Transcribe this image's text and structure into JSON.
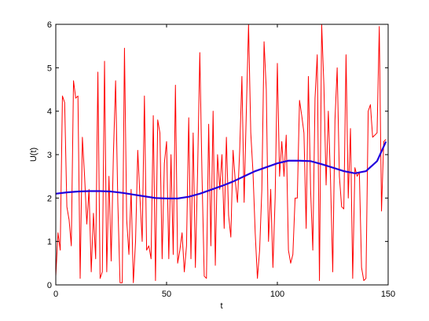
{
  "chart_data": {
    "type": "line",
    "xlabel": "t",
    "ylabel": "U(t)",
    "xlim": [
      0,
      150
    ],
    "ylim": [
      0,
      6
    ],
    "xticks": [
      0,
      50,
      100,
      150
    ],
    "yticks": [
      0,
      1,
      2,
      3,
      4,
      5,
      6
    ],
    "grid": false,
    "series": [
      {
        "color": "#ff0000",
        "width": 1,
        "x": [
          0,
          1,
          2,
          3,
          4,
          5,
          6,
          7,
          8,
          9,
          10,
          11,
          12,
          13,
          14,
          15,
          16,
          17,
          18,
          19,
          20,
          21,
          22,
          23,
          24,
          25,
          26,
          27,
          28,
          29,
          30,
          31,
          32,
          33,
          34,
          35,
          36,
          37,
          38,
          39,
          40,
          41,
          42,
          43,
          44,
          45,
          46,
          47,
          48,
          49,
          50,
          51,
          52,
          53,
          54,
          55,
          56,
          57,
          58,
          59,
          60,
          61,
          62,
          63,
          64,
          65,
          66,
          67,
          68,
          69,
          70,
          71,
          72,
          73,
          74,
          75,
          76,
          77,
          78,
          79,
          80,
          81,
          82,
          83,
          84,
          85,
          86,
          87,
          88,
          89,
          90,
          91,
          92,
          93,
          94,
          95,
          96,
          97,
          98,
          99,
          100,
          101,
          102,
          103,
          104,
          105,
          106,
          107,
          108,
          109,
          110,
          111,
          112,
          113,
          114,
          115,
          116,
          117,
          118,
          119,
          120,
          121,
          122,
          123,
          124,
          125,
          126,
          127,
          128,
          129,
          130,
          131,
          132,
          133,
          134,
          135,
          136,
          137,
          138,
          139,
          140,
          141,
          142,
          143,
          144,
          145,
          146,
          147,
          148,
          149
        ],
        "values": [
          0.2,
          1.2,
          0.8,
          4.35,
          4.2,
          1.8,
          1.5,
          0.9,
          4.7,
          4.3,
          4.35,
          0.15,
          3.4,
          2.5,
          1.4,
          2.2,
          0.3,
          1.65,
          0.6,
          4.9,
          0.15,
          0.3,
          5.15,
          0.3,
          2.5,
          0.55,
          3.0,
          4.7,
          1.9,
          0.05,
          0.05,
          5.45,
          1.5,
          0.7,
          2.2,
          0.05,
          1.0,
          3.1,
          2.0,
          1.0,
          4.35,
          0.8,
          0.9,
          0.6,
          3.9,
          0.1,
          3.8,
          3.5,
          0.6,
          2.8,
          3.3,
          0.6,
          3.0,
          0.7,
          4.6,
          0.5,
          0.8,
          1.2,
          0.3,
          0.9,
          3.85,
          0.6,
          3.5,
          0.4,
          2.6,
          5.35,
          2.5,
          0.2,
          0.15,
          3.7,
          0.9,
          4.0,
          0.45,
          3.0,
          2.2,
          3.0,
          1.3,
          3.4,
          1.6,
          1.1,
          3.1,
          2.4,
          1.9,
          3.1,
          4.8,
          1.9,
          4.0,
          6.0,
          3.5,
          2.6,
          1.2,
          0.15,
          0.8,
          2.2,
          5.6,
          4.5,
          1.0,
          2.2,
          0.4,
          2.0,
          5.1,
          2.5,
          3.3,
          2.5,
          3.45,
          0.8,
          0.5,
          0.7,
          2.0,
          2.0,
          4.25,
          3.9,
          3.5,
          1.3,
          4.8,
          2.2,
          0.8,
          4.3,
          5.3,
          0.1,
          6.0,
          4.6,
          2.3,
          4.0,
          2.4,
          0.3,
          3.8,
          5.0,
          2.5,
          1.8,
          1.75,
          5.3,
          2.0,
          3.6,
          0.15,
          2.7,
          2.5,
          2.6,
          0.4,
          0.1,
          0.15,
          4.0,
          4.15,
          3.4,
          3.45,
          3.5,
          5.95,
          1.7,
          3.3,
          3.35
        ]
      },
      {
        "color": "#2200dd",
        "width": 2.2,
        "x": [
          0,
          5,
          10,
          15,
          20,
          25,
          30,
          35,
          40,
          45,
          50,
          55,
          60,
          65,
          70,
          75,
          80,
          85,
          90,
          95,
          100,
          105,
          110,
          115,
          120,
          125,
          130,
          135,
          140,
          145,
          149
        ],
        "values": [
          2.1,
          2.13,
          2.15,
          2.16,
          2.16,
          2.15,
          2.12,
          2.08,
          2.04,
          2.0,
          1.99,
          1.99,
          2.03,
          2.1,
          2.19,
          2.28,
          2.38,
          2.5,
          2.62,
          2.71,
          2.8,
          2.86,
          2.86,
          2.85,
          2.78,
          2.7,
          2.62,
          2.57,
          2.62,
          2.85,
          3.3
        ]
      }
    ]
  }
}
